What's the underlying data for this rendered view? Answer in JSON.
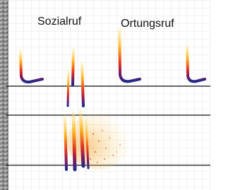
{
  "labels": {
    "social_call": "Sozialruf",
    "echolocation_call": "Ortungsruf"
  }
}
